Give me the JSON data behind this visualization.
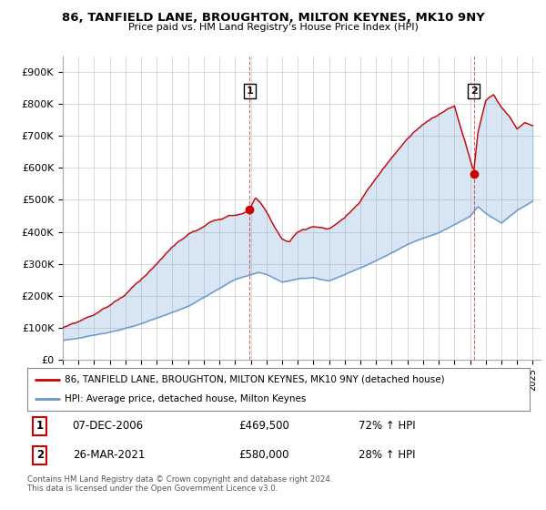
{
  "title": "86, TANFIELD LANE, BROUGHTON, MILTON KEYNES, MK10 9NY",
  "subtitle": "Price paid vs. HM Land Registry's House Price Index (HPI)",
  "ylabel_ticks": [
    "£0",
    "£100K",
    "£200K",
    "£300K",
    "£400K",
    "£500K",
    "£600K",
    "£700K",
    "£800K",
    "£900K"
  ],
  "ytick_values": [
    0,
    100000,
    200000,
    300000,
    400000,
    500000,
    600000,
    700000,
    800000,
    900000
  ],
  "ylim": [
    0,
    950000
  ],
  "xlim_start": 1995.25,
  "xlim_end": 2025.5,
  "transaction1": {
    "date": 2006.93,
    "price": 469500,
    "label": "1"
  },
  "transaction2": {
    "date": 2021.23,
    "price": 580000,
    "label": "2"
  },
  "legend_line1": "86, TANFIELD LANE, BROUGHTON, MILTON KEYNES, MK10 9NY (detached house)",
  "legend_line2": "HPI: Average price, detached house, Milton Keynes",
  "table_row1": [
    "1",
    "07-DEC-2006",
    "£469,500",
    "72% ↑ HPI"
  ],
  "table_row2": [
    "2",
    "26-MAR-2021",
    "£580,000",
    "28% ↑ HPI"
  ],
  "footer1": "Contains HM Land Registry data © Crown copyright and database right 2024.",
  "footer2": "This data is licensed under the Open Government Licence v3.0.",
  "hpi_color": "#6699cc",
  "fill_color": "#ddeeff",
  "price_color": "#cc0000",
  "vline_color": "#cc0000",
  "background_color": "#ffffff",
  "grid_color": "#cccccc"
}
